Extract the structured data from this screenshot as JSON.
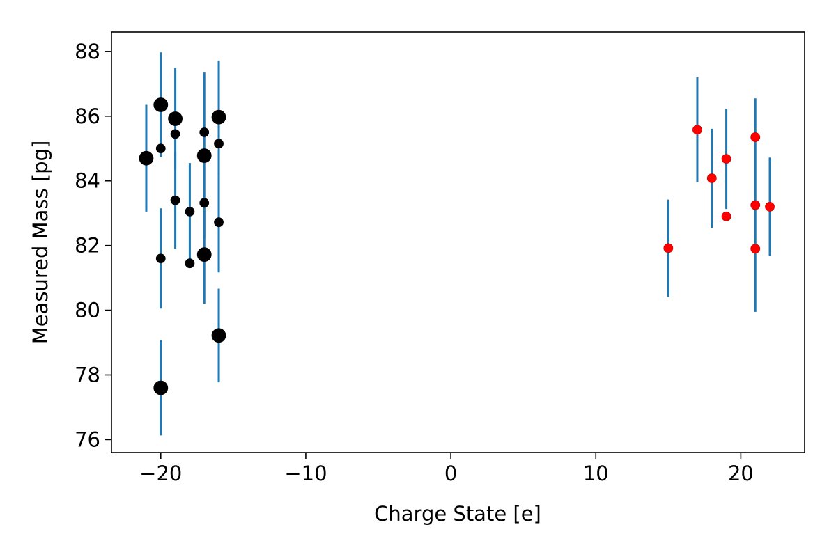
{
  "chart_data": {
    "type": "scatter",
    "title": "",
    "xlabel": "Charge State [e]",
    "ylabel": "Measured Mass [pg]",
    "xlim": [
      -23.4,
      24.4
    ],
    "ylim": [
      75.6,
      88.6
    ],
    "xticks": [
      -20,
      -10,
      0,
      10,
      20
    ],
    "xtick_labels": [
      "−20",
      "−10",
      "0",
      "10",
      "20"
    ],
    "yticks": [
      76,
      78,
      80,
      82,
      84,
      86,
      88
    ],
    "ytick_labels": [
      "76",
      "78",
      "80",
      "82",
      "84",
      "86",
      "88"
    ],
    "grid": false,
    "legend": "none",
    "error_bar_color": "#1f77b4",
    "series": [
      {
        "marker_color": "#000000",
        "marker_size": "large",
        "points": [
          {
            "x": -21,
            "y": 84.7,
            "err": 1.65
          },
          {
            "x": -20,
            "y": 86.35,
            "err": 1.62
          },
          {
            "x": -20,
            "y": 77.6,
            "err": 1.47
          },
          {
            "x": -19,
            "y": 85.92,
            "err": 1.57
          },
          {
            "x": -17,
            "y": 84.78,
            "err": 2.57
          },
          {
            "x": -17,
            "y": 81.72,
            "err": 1.52
          },
          {
            "x": -16,
            "y": 85.97,
            "err": 1.75
          },
          {
            "x": -16,
            "y": 79.22,
            "err": 1.45
          }
        ]
      },
      {
        "marker_color": "#000000",
        "marker_size": "small",
        "points": [
          {
            "x": -20,
            "y": 85.0,
            "err": 0
          },
          {
            "x": -20,
            "y": 81.6,
            "err": 1.55
          },
          {
            "x": -19,
            "y": 85.45,
            "err": 0
          },
          {
            "x": -19,
            "y": 83.4,
            "err": 1.5
          },
          {
            "x": -18,
            "y": 83.05,
            "err": 1.5
          },
          {
            "x": -18,
            "y": 81.45,
            "err": 0
          },
          {
            "x": -17,
            "y": 85.5,
            "err": 0
          },
          {
            "x": -17,
            "y": 83.32,
            "err": 0
          },
          {
            "x": -16,
            "y": 85.15,
            "err": 0
          },
          {
            "x": -16,
            "y": 82.72,
            "err": 1.55
          }
        ]
      },
      {
        "marker_color": "#ff0000",
        "marker_size": "small",
        "points": [
          {
            "x": 15,
            "y": 81.92,
            "err": 1.5
          },
          {
            "x": 17,
            "y": 85.58,
            "err": 1.62
          },
          {
            "x": 18,
            "y": 84.08,
            "err": 1.53
          },
          {
            "x": 19,
            "y": 84.68,
            "err": 1.55
          },
          {
            "x": 19,
            "y": 82.9,
            "err": 0
          },
          {
            "x": 21,
            "y": 85.35,
            "err": 0
          },
          {
            "x": 21,
            "y": 83.25,
            "err": 3.3
          },
          {
            "x": 21,
            "y": 81.9,
            "err": 0
          },
          {
            "x": 22,
            "y": 83.2,
            "err": 1.52
          }
        ]
      }
    ]
  }
}
